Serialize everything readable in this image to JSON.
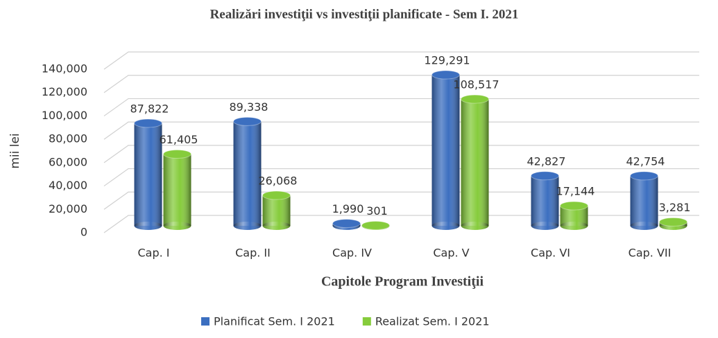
{
  "chart_data": {
    "type": "bar",
    "title": "Realizări investiţii vs investiţii planificate - Sem I. 2021",
    "x_label": "Capitole Program Investiţii",
    "y_label": "mii lei",
    "categories": [
      "Cap. I",
      "Cap. II",
      "Cap. IV",
      "Cap. V",
      "Cap. VI",
      "Cap. VII"
    ],
    "series": [
      {
        "name": "Planificat Sem. I 2021",
        "color": "#3c6fc0",
        "values": [
          87822,
          89338,
          1990,
          129291,
          42827,
          42754
        ],
        "value_labels": [
          "87,822",
          "89,338",
          "1,990",
          "129,291",
          "42,827",
          "42,754"
        ]
      },
      {
        "name": "Realizat Sem. I 2021",
        "color": "#86cc3c",
        "values": [
          61405,
          26068,
          301,
          108517,
          17144,
          3281
        ],
        "value_labels": [
          "61,405",
          "26,068",
          "301",
          "108,517",
          "17,144",
          "3,281"
        ]
      }
    ],
    "ylim": [
      0,
      140000
    ],
    "yticks": [
      0,
      {
        "value": 20000,
        "label": "20,000"
      },
      {
        "value": 40000,
        "label": "40,000"
      },
      {
        "value": 60000,
        "label": "60,000"
      },
      {
        "value": 80000,
        "label": "80,000"
      },
      {
        "value": 100000,
        "label": "100,000"
      },
      {
        "value": 120000,
        "label": "120,000"
      },
      {
        "value": 140000,
        "label": "140,000"
      }
    ],
    "grid": true,
    "legend": "bottom"
  }
}
